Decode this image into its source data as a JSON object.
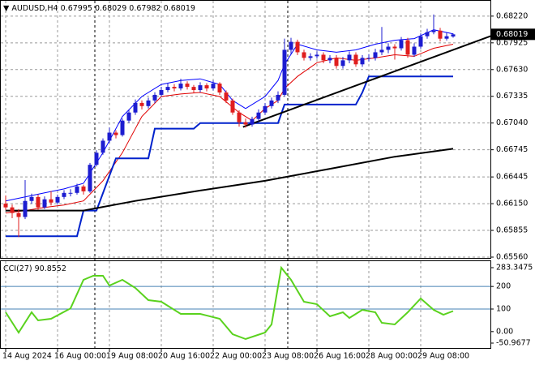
{
  "chart_data": [
    {
      "type": "candlestick",
      "symbol": "AUDUSD,H4",
      "categories": [
        "14 Aug 2024",
        null,
        null,
        null,
        null,
        null,
        null,
        null,
        "16 Aug 00:00",
        null,
        null,
        null,
        null,
        null,
        null,
        null,
        "19 Aug 08:00",
        null,
        null,
        null,
        null,
        null,
        null,
        null,
        "20 Aug 16:00",
        null,
        null,
        null,
        null,
        null,
        null,
        null,
        "22 Aug 00:00",
        null,
        null,
        null,
        null,
        null,
        null,
        null,
        "23 Aug 08:00",
        null,
        null,
        null,
        null,
        null,
        null,
        null,
        "26 Aug 16:00",
        null,
        null,
        null,
        null,
        null,
        null,
        null,
        "28 Aug 00:00",
        null,
        null,
        null,
        null,
        null,
        null,
        null,
        "29 Aug 08:00",
        null,
        null,
        null,
        null,
        null
      ],
      "open": [
        0.6615,
        0.66109,
        0.66047,
        0.66003,
        0.6618,
        0.66224,
        0.66109,
        0.66198,
        0.66162,
        0.66224,
        0.66269,
        0.66269,
        0.6634,
        0.66286,
        0.66579,
        0.66712,
        0.66845,
        0.66934,
        0.66907,
        0.67067,
        0.67156,
        0.67262,
        0.67227,
        0.67289,
        0.67351,
        0.67404,
        0.67439,
        0.67422,
        0.67475,
        0.67439,
        0.67404,
        0.67457,
        0.67422,
        0.67475,
        0.67377,
        0.67289,
        0.67156,
        0.67049,
        0.67023,
        0.67085,
        0.67156,
        0.67227,
        0.67289,
        0.67351,
        0.67848,
        0.67936,
        0.67821,
        0.67759,
        0.67777,
        0.67794,
        0.67732,
        0.67759,
        0.6767,
        0.67732,
        0.67794,
        0.67688,
        0.67759,
        0.67759,
        0.67821,
        0.67848,
        0.67883,
        0.67865,
        0.67954,
        0.67794,
        0.67883,
        0.67998,
        0.68043,
        0.6806,
        0.67971,
        0.67995
      ],
      "high": [
        0.6624,
        0.6614,
        0.6609,
        0.6641,
        0.6626,
        0.6625,
        0.6623,
        0.6629,
        0.6625,
        0.663,
        0.6631,
        0.6637,
        0.6636,
        0.666,
        0.6674,
        0.6687,
        0.6699,
        0.6696,
        0.6709,
        0.6719,
        0.673,
        0.6729,
        0.6732,
        0.6738,
        0.6744,
        0.6748,
        0.6747,
        0.67528,
        0.675,
        0.6746,
        0.6749,
        0.6748,
        0.6751,
        0.6749,
        0.674,
        0.6731,
        0.6718,
        0.6709,
        0.6711,
        0.6719,
        0.6726,
        0.6732,
        0.6739,
        0.67972,
        0.6798,
        0.6796,
        0.6785,
        0.6781,
        0.6783,
        0.6782,
        0.6779,
        0.6779,
        0.6777,
        0.6783,
        0.6782,
        0.6779,
        0.678,
        0.6786,
        0.681,
        0.6792,
        0.6791,
        0.6799,
        0.6798,
        0.6792,
        0.6803,
        0.6808,
        0.68238,
        0.6809,
        0.6804,
        0.68029
      ],
      "low": [
        0.6608,
        0.6599,
        0.65781,
        0.6598,
        0.6615,
        0.6608,
        0.6609,
        0.6613,
        0.6614,
        0.662,
        0.6623,
        0.6625,
        0.6625,
        0.6627,
        0.6656,
        0.6669,
        0.6682,
        0.6687,
        0.6689,
        0.6704,
        0.6713,
        0.6719,
        0.672,
        0.6726,
        0.6733,
        0.6738,
        0.6739,
        0.674,
        0.6741,
        0.6737,
        0.6738,
        0.6739,
        0.674,
        0.6735,
        0.6726,
        0.6713,
        0.67,
        0.6699,
        0.67,
        0.6706,
        0.6713,
        0.672,
        0.6726,
        0.6733,
        0.678,
        0.6779,
        0.6773,
        0.6773,
        0.6775,
        0.677,
        0.677,
        0.6764,
        0.6764,
        0.677,
        0.6766,
        0.6766,
        0.6772,
        0.6773,
        0.6779,
        0.6781,
        0.6774,
        0.6784,
        0.6776,
        0.6777,
        0.6786,
        0.6797,
        0.6802,
        0.6794,
        0.6795,
        0.67982
      ],
      "close": [
        0.66109,
        0.66047,
        0.66003,
        0.6618,
        0.66224,
        0.66109,
        0.66198,
        0.66162,
        0.66224,
        0.66269,
        0.66269,
        0.6634,
        0.66286,
        0.66579,
        0.66712,
        0.66845,
        0.66934,
        0.66907,
        0.67067,
        0.67156,
        0.67262,
        0.67227,
        0.67289,
        0.67351,
        0.67404,
        0.67439,
        0.67422,
        0.67475,
        0.67439,
        0.67404,
        0.67457,
        0.67422,
        0.67475,
        0.67377,
        0.67289,
        0.67156,
        0.67049,
        0.67023,
        0.67085,
        0.67156,
        0.67227,
        0.67289,
        0.67351,
        0.67848,
        0.67936,
        0.67821,
        0.67759,
        0.67777,
        0.67794,
        0.67732,
        0.67759,
        0.6767,
        0.67732,
        0.67794,
        0.67688,
        0.67759,
        0.67759,
        0.67821,
        0.67848,
        0.67883,
        0.67865,
        0.67954,
        0.67794,
        0.67883,
        0.67998,
        0.68043,
        0.6806,
        0.67971,
        0.67998,
        0.68019
      ],
      "up_color": "#1c1cd0",
      "down_color": "#e01e1e",
      "ylim": [
        0.65551,
        0.6838
      ],
      "yticks": [
        {
          "value": 0.6822,
          "label": "0.68220"
        },
        {
          "value": 0.67925,
          "label": "0.67925"
        },
        {
          "value": 0.6763,
          "label": "0.67630"
        },
        {
          "value": 0.67335,
          "label": "0.67335"
        },
        {
          "value": 0.6704,
          "label": "0.67040"
        },
        {
          "value": 0.66745,
          "label": "0.66745"
        },
        {
          "value": 0.66445,
          "label": "0.66445"
        },
        {
          "value": 0.6615,
          "label": "0.66150"
        },
        {
          "value": 0.65855,
          "label": "0.65855"
        },
        {
          "value": 0.6556,
          "label": "0.65560"
        }
      ],
      "grid": true,
      "lines": [
        {
          "color": "#0000ff",
          "style": "thin",
          "x": [
            0,
            3,
            6,
            9,
            12,
            15,
            18,
            21,
            24,
            27,
            30,
            33,
            35,
            37,
            40,
            42,
            43,
            45,
            48,
            51,
            54,
            57,
            60,
            63,
            66,
            69
          ],
          "values": [
            0.6618,
            0.66224,
            0.66269,
            0.66313,
            0.66375,
            0.66712,
            0.67111,
            0.67333,
            0.67466,
            0.6751,
            0.67528,
            0.67466,
            0.67289,
            0.672,
            0.67333,
            0.6751,
            0.67688,
            0.6791,
            0.67847,
            0.67821,
            0.67847,
            0.6791,
            0.67954,
            0.67972,
            0.68069,
            0.68025
          ]
        },
        {
          "color": "#e00000",
          "style": "thin",
          "x": [
            0,
            3,
            6,
            9,
            12,
            15,
            18,
            21,
            24,
            27,
            30,
            33,
            36,
            38,
            40,
            42,
            43,
            45,
            48,
            51,
            54,
            57,
            60,
            63,
            66,
            69
          ],
          "values": [
            0.66047,
            0.66074,
            0.66109,
            0.66136,
            0.6618,
            0.66402,
            0.66712,
            0.67111,
            0.67333,
            0.6736,
            0.67377,
            0.67333,
            0.67156,
            0.67067,
            0.672,
            0.67289,
            0.67422,
            0.67555,
            0.67706,
            0.67759,
            0.67732,
            0.67759,
            0.67794,
            0.67777,
            0.67865,
            0.6791
          ]
        },
        {
          "color": "#0022cc",
          "style": "thick",
          "x": [
            0,
            11,
            12,
            14,
            17,
            22,
            23,
            29,
            30,
            42,
            43,
            54,
            55,
            56,
            69
          ],
          "values": [
            0.6579,
            0.6579,
            0.66074,
            0.66074,
            0.6665,
            0.6665,
            0.66978,
            0.66978,
            0.6704,
            0.6704,
            0.67244,
            0.67244,
            0.67377,
            0.67555,
            0.67555
          ]
        },
        {
          "color": "#000000",
          "style": "thick",
          "x": [
            0,
            12,
            20,
            30,
            40,
            50,
            60,
            69
          ],
          "values": [
            0.66074,
            0.66074,
            0.6618,
            0.66295,
            0.66402,
            0.66535,
            0.66668,
            0.66756
          ]
        },
        {
          "color": "#000000",
          "style": "thick",
          "x": [
            36.6,
            75.4
          ],
          "values": [
            0.66996,
            0.68016
          ]
        }
      ]
    },
    {
      "type": "line",
      "title": "CCI(27)",
      "color": "#5ad21e",
      "x": [
        0,
        2,
        4,
        5,
        7,
        10,
        12,
        13.5,
        15,
        16,
        18,
        20,
        22,
        24,
        27,
        30,
        33,
        35,
        37,
        40,
        41,
        42.5,
        44,
        46,
        48,
        50,
        52,
        53,
        55,
        57,
        58,
        60,
        62,
        64,
        66,
        67.5,
        69
      ],
      "values": [
        85.6,
        -4.2,
        85.6,
        49.7,
        56.9,
        103,
        229.4,
        247.4,
        247.4,
        204.2,
        229.4,
        193.5,
        139.5,
        132.4,
        78.4,
        78.4,
        56.9,
        -11.4,
        -33,
        -4.2,
        31.7,
        283.3475,
        229.4,
        132.4,
        121.6,
        67.7,
        85.6,
        60.5,
        96.4,
        85.6,
        38.9,
        31.7,
        85.6,
        146.7,
        96.4,
        74.9,
        90.8552
      ],
      "ylim": [
        -50.9677,
        283.3475
      ],
      "yticks": [
        283.3475,
        200,
        100,
        {
          "value": 0,
          "label": "0.00"
        },
        -50.9677
      ],
      "levels": [
        200,
        100
      ],
      "level_color": "#4682b4"
    }
  ]
}
